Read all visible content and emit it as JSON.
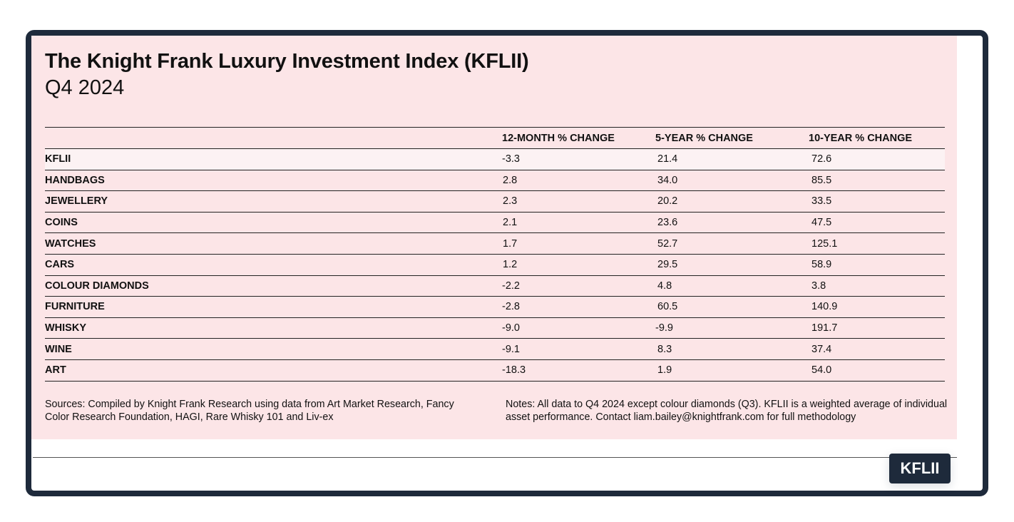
{
  "header": {
    "title": "The Knight Frank Luxury Investment Index (KFLII)",
    "subtitle": "Q4 2024"
  },
  "chart_data": {
    "type": "table",
    "columns": [
      "",
      "12-MONTH % CHANGE",
      "5-YEAR % CHANGE",
      "10-YEAR % CHANGE"
    ],
    "rows": [
      {
        "label": "KFLII",
        "v12": "-3.3",
        "v5": "21.4",
        "v10": "72.6"
      },
      {
        "label": "HANDBAGS",
        "v12": "2.8",
        "v5": "34.0",
        "v10": "85.5"
      },
      {
        "label": "JEWELLERY",
        "v12": "2.3",
        "v5": "20.2",
        "v10": "33.5"
      },
      {
        "label": "COINS",
        "v12": "2.1",
        "v5": "23.6",
        "v10": "47.5"
      },
      {
        "label": "WATCHES",
        "v12": "1.7",
        "v5": "52.7",
        "v10": "125.1"
      },
      {
        "label": "CARS",
        "v12": "1.2",
        "v5": "29.5",
        "v10": "58.9"
      },
      {
        "label": "COLOUR DIAMONDS",
        "v12": "-2.2",
        "v5": "4.8",
        "v10": "3.8"
      },
      {
        "label": "FURNITURE",
        "v12": "-2.8",
        "v5": "60.5",
        "v10": "140.9"
      },
      {
        "label": "WHISKY",
        "v12": "-9.0",
        "v5": "-9.9",
        "v10": "191.7"
      },
      {
        "label": "WINE",
        "v12": "-9.1",
        "v5": "8.3",
        "v10": "37.4"
      },
      {
        "label": "ART",
        "v12": "-18.3",
        "v5": "1.9",
        "v10": "54.0"
      }
    ]
  },
  "footer": {
    "sources": "Sources: Compiled by Knight Frank Research using data from Art Market Research, Fancy Color Research Foundation, HAGI, Rare Whisky 101 and Liv-ex",
    "notes": "Notes: All data to Q4 2024 except colour diamonds (Q3). KFLII is a weighted average of individual asset performance. Contact liam.bailey@knightfrank.com for full methodology"
  },
  "badge": {
    "label": "KFLII"
  },
  "colors": {
    "frame": "#1e2a3b",
    "panel": "#fce5e7",
    "highlight_row": "#fcf2f3"
  }
}
